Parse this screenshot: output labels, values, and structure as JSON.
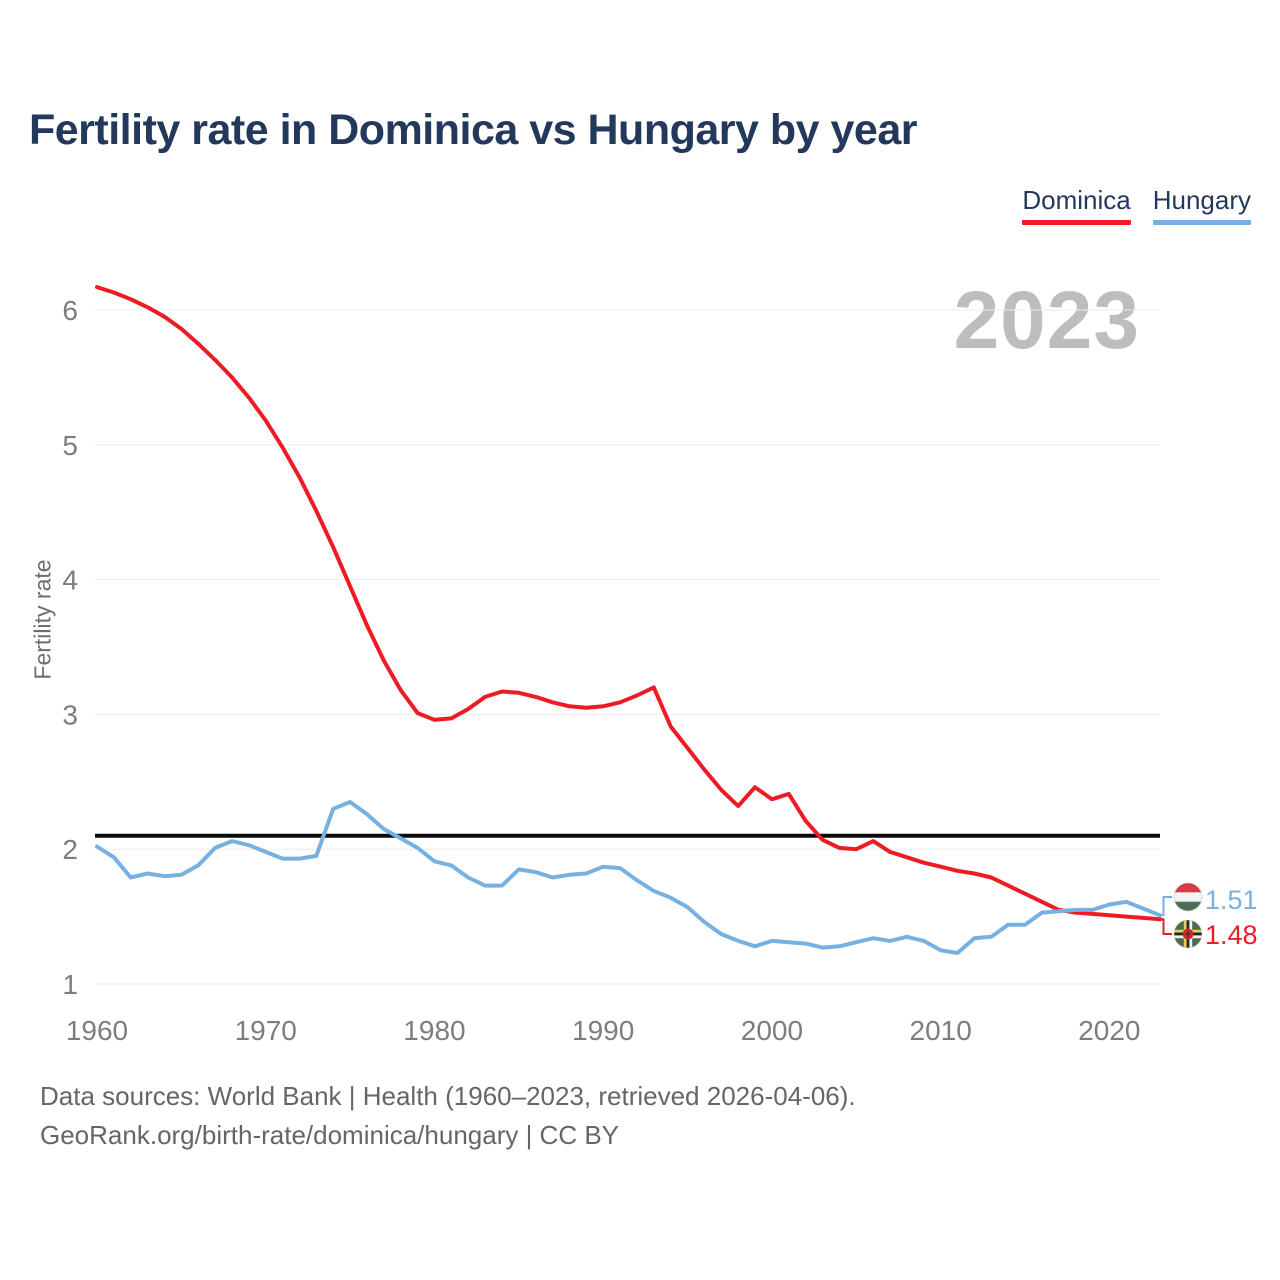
{
  "title": "Fertility rate in Dominica vs Hungary by year",
  "watermark": "2023",
  "legend": {
    "items": [
      {
        "label": "Dominica",
        "color": "#ed1c24"
      },
      {
        "label": "Hungary",
        "color": "#77b1e2"
      }
    ]
  },
  "end_labels": {
    "hungary": "1.51",
    "dominica": "1.48"
  },
  "footer": {
    "line1": "Data sources: World Bank | Health (1960–2023, retrieved 2026-04-06).",
    "line2": "GeoRank.org/birth-rate/dominica/hungary | CC BY"
  },
  "icons": {
    "hungary_flag": "hungary-flag-icon",
    "dominica_flag": "dominica-flag-icon"
  },
  "chart_data": {
    "type": "line",
    "title": "Fertility rate in Dominica vs Hungary by year",
    "xlabel": "",
    "ylabel": "Fertility rate",
    "xlim": [
      1960,
      2023
    ],
    "ylim": [
      1,
      6.4
    ],
    "x_ticks": [
      1960,
      1970,
      1980,
      1990,
      2000,
      2010,
      2020
    ],
    "y_ticks": [
      1,
      2,
      3,
      4,
      5,
      6
    ],
    "grid": true,
    "legend_position": "top-right",
    "reference_line": 2.1,
    "x": [
      1960,
      1961,
      1962,
      1963,
      1964,
      1965,
      1966,
      1967,
      1968,
      1969,
      1970,
      1971,
      1972,
      1973,
      1974,
      1975,
      1976,
      1977,
      1978,
      1979,
      1980,
      1981,
      1982,
      1983,
      1984,
      1985,
      1986,
      1987,
      1988,
      1989,
      1990,
      1991,
      1992,
      1993,
      1994,
      1995,
      1996,
      1997,
      1998,
      1999,
      2000,
      2001,
      2002,
      2003,
      2004,
      2005,
      2006,
      2007,
      2008,
      2009,
      2010,
      2011,
      2012,
      2013,
      2014,
      2015,
      2016,
      2017,
      2018,
      2019,
      2020,
      2021,
      2022,
      2023
    ],
    "series": [
      {
        "name": "Dominica",
        "color": "#ed1c24",
        "end_value": 1.48,
        "values": [
          6.17,
          6.13,
          6.08,
          6.02,
          5.95,
          5.86,
          5.75,
          5.63,
          5.5,
          5.35,
          5.18,
          4.98,
          4.76,
          4.51,
          4.24,
          3.95,
          3.66,
          3.4,
          3.18,
          3.01,
          2.96,
          2.97,
          3.04,
          3.13,
          3.17,
          3.16,
          3.13,
          3.09,
          3.06,
          3.05,
          3.06,
          3.09,
          3.14,
          3.2,
          2.91,
          2.75,
          2.59,
          2.44,
          2.32,
          2.46,
          2.37,
          2.41,
          2.21,
          2.07,
          2.01,
          2.0,
          2.06,
          1.98,
          1.94,
          1.9,
          1.87,
          1.84,
          1.82,
          1.79,
          1.73,
          1.67,
          1.61,
          1.55,
          1.53,
          1.52,
          1.51,
          1.5,
          1.49,
          1.48
        ]
      },
      {
        "name": "Hungary",
        "color": "#77b1e2",
        "end_value": 1.51,
        "values": [
          2.02,
          1.94,
          1.79,
          1.82,
          1.8,
          1.81,
          1.88,
          2.01,
          2.06,
          2.03,
          1.98,
          1.93,
          1.93,
          1.95,
          2.3,
          2.35,
          2.26,
          2.15,
          2.08,
          2.01,
          1.91,
          1.88,
          1.79,
          1.73,
          1.73,
          1.85,
          1.83,
          1.79,
          1.81,
          1.82,
          1.87,
          1.86,
          1.77,
          1.69,
          1.64,
          1.57,
          1.46,
          1.37,
          1.32,
          1.28,
          1.32,
          1.31,
          1.3,
          1.27,
          1.28,
          1.31,
          1.34,
          1.32,
          1.35,
          1.32,
          1.25,
          1.23,
          1.34,
          1.35,
          1.44,
          1.44,
          1.53,
          1.54,
          1.55,
          1.55,
          1.59,
          1.61,
          1.56,
          1.51
        ]
      }
    ]
  }
}
